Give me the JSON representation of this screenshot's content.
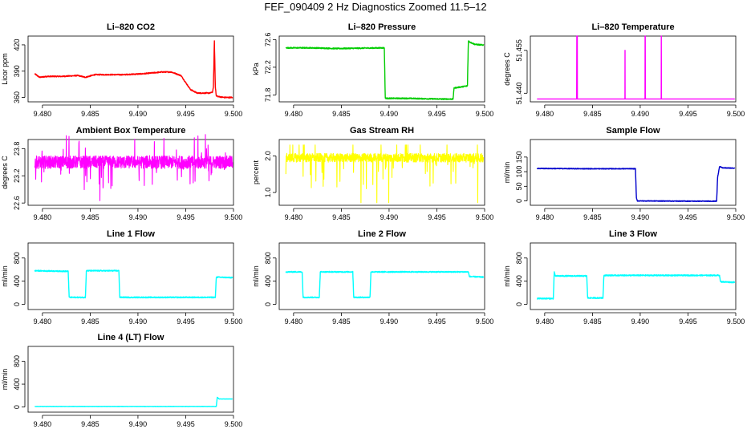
{
  "figure": {
    "title": "FEF_090409  2 Hz Diagnostics Zoomed 11.5–12"
  },
  "chart_data": [
    {
      "type": "line",
      "title": "Li–820 CO2",
      "ylabel": "Licor ppm",
      "color": "#ff0000",
      "xlim": [
        9.4785,
        9.5
      ],
      "ylim": [
        355,
        430
      ],
      "xticks": [
        "9.480",
        "9.485",
        "9.490",
        "9.495",
        "9.500"
      ],
      "yticks": [
        360,
        390,
        420
      ],
      "noise": 0.6,
      "series": [
        {
          "x": [
            9.4792,
            9.4797,
            9.4805,
            9.482,
            9.4837,
            9.4845,
            9.4855,
            9.487,
            9.4885,
            9.4905,
            9.4925,
            9.4935,
            9.4945,
            9.495,
            9.4955,
            9.4962,
            9.4975,
            9.4978,
            9.4979,
            9.498,
            9.4981,
            9.4982,
            9.4984,
            9.499,
            9.4999
          ],
          "y": [
            387,
            383,
            384,
            384,
            385,
            383,
            386,
            386,
            386,
            387,
            389,
            389,
            385,
            377,
            369,
            365,
            365,
            366,
            372,
            424,
            372,
            362,
            361,
            360,
            360
          ]
        }
      ]
    },
    {
      "type": "line",
      "title": "Li–820 Pressure",
      "ylabel": "kPa",
      "color": "#00cc00",
      "xlim": [
        9.4785,
        9.5
      ],
      "ylim": [
        71.7,
        72.65
      ],
      "xticks": [
        "9.480",
        "9.485",
        "9.490",
        "9.495",
        "9.500"
      ],
      "yticks": [
        "71.8",
        "72.2",
        "72.6"
      ],
      "noise": 0.008,
      "series": [
        {
          "x": [
            9.4792,
            9.4818,
            9.4845,
            9.4895,
            9.4896,
            9.4897,
            9.492,
            9.4955,
            9.4967,
            9.4968,
            9.4982,
            9.4983,
            9.4985,
            9.499,
            9.4999
          ],
          "y": [
            72.48,
            72.48,
            72.47,
            72.48,
            71.76,
            71.75,
            71.75,
            71.74,
            71.74,
            71.9,
            71.93,
            72.58,
            72.56,
            72.53,
            72.52
          ]
        }
      ]
    },
    {
      "type": "line",
      "title": "Li–820 Temperature",
      "ylabel": "degrees C",
      "color": "#ff00ff",
      "xlim": [
        9.4785,
        9.5
      ],
      "ylim": [
        51.437,
        51.46
      ],
      "xticks": [
        "9.480",
        "9.485",
        "9.490",
        "9.495",
        "9.500"
      ],
      "yticks": [
        "51.440",
        "51.455"
      ],
      "noise": 0,
      "series": [
        {
          "x": [
            9.4792,
            9.48335,
            9.48336,
            9.48337,
            9.48339,
            9.4834,
            9.48341,
            9.48342,
            9.48343,
            9.4884,
            9.48841,
            9.48842,
            9.4905,
            9.49051,
            9.49052,
            9.49053,
            9.49054,
            9.4922,
            9.49221,
            9.49222,
            9.4999
          ],
          "y": [
            51.438,
            51.438,
            51.46,
            51.438,
            51.46,
            51.438,
            51.46,
            51.438,
            51.438,
            51.438,
            51.455,
            51.438,
            51.438,
            51.46,
            51.438,
            51.46,
            51.438,
            51.438,
            51.46,
            51.438,
            51.438
          ]
        }
      ]
    },
    {
      "type": "line",
      "title": "Ambient Box Temperature",
      "ylabel": "degrees C",
      "color": "#ff00ff",
      "xlim": [
        9.4785,
        9.5
      ],
      "ylim": [
        22.55,
        24.0
      ],
      "xticks": [
        "9.480",
        "9.485",
        "9.490",
        "9.495",
        "9.500"
      ],
      "yticks": [
        "22.6",
        "23.2",
        "23.8"
      ],
      "noise": 0.14,
      "series": [
        {
          "x": [
            9.4792,
            9.4999
          ],
          "y": [
            23.5,
            23.5
          ]
        }
      ]
    },
    {
      "type": "line",
      "title": "Gas Stream RH",
      "ylabel": "percent",
      "color": "#ffff00",
      "xlim": [
        9.4785,
        9.5
      ],
      "ylim": [
        0.65,
        2.45
      ],
      "xticks": [
        "9.480",
        "9.485",
        "9.490",
        "9.495",
        "9.500"
      ],
      "yticks": [
        "1.0",
        "2.0"
      ],
      "noise": 0.12,
      "series": [
        {
          "x": [
            9.4792,
            9.4999
          ],
          "y": [
            1.95,
            1.95
          ]
        }
      ]
    },
    {
      "type": "line",
      "title": "Sample Flow",
      "ylabel": "ml/min",
      "color": "#0000cc",
      "xlim": [
        9.4785,
        9.5
      ],
      "ylim": [
        -15,
        210
      ],
      "xticks": [
        "9.480",
        "9.485",
        "9.490",
        "9.495",
        "9.500"
      ],
      "yticks": [
        0,
        50,
        100,
        150
      ],
      "noise": 1.2,
      "series": [
        {
          "x": [
            9.4792,
            9.484,
            9.4895,
            9.4896,
            9.4897,
            9.496,
            9.498,
            9.4981,
            9.4983,
            9.4986,
            9.4999
          ],
          "y": [
            111,
            110,
            110,
            10,
            0,
            -1,
            -1,
            80,
            118,
            113,
            112
          ]
        }
      ]
    },
    {
      "type": "line",
      "title": "Line 1 Flow",
      "ylabel": "ml/min",
      "color": "#00ffff",
      "xlim": [
        9.4785,
        9.5
      ],
      "ylim": [
        -90,
        1060
      ],
      "xticks": [
        "9.480",
        "9.485",
        "9.490",
        "9.495",
        "9.500"
      ],
      "yticks": [
        0,
        400,
        800
      ],
      "noise": 9,
      "series": [
        {
          "x": [
            9.4792,
            9.4827,
            9.4828,
            9.4845,
            9.4846,
            9.488,
            9.4881,
            9.4981,
            9.4982,
            9.4999
          ],
          "y": [
            580,
            570,
            120,
            120,
            580,
            580,
            120,
            120,
            470,
            460
          ]
        }
      ]
    },
    {
      "type": "line",
      "title": "Line 2 Flow",
      "ylabel": "ml/min",
      "color": "#00ffff",
      "xlim": [
        9.4785,
        9.5
      ],
      "ylim": [
        -90,
        1060
      ],
      "xticks": [
        "9.480",
        "9.485",
        "9.490",
        "9.495",
        "9.500"
      ],
      "yticks": [
        0,
        400,
        800
      ],
      "noise": 9,
      "series": [
        {
          "x": [
            9.4792,
            9.4809,
            9.481,
            9.4827,
            9.4828,
            9.4862,
            9.4863,
            9.488,
            9.4881,
            9.4983,
            9.4984,
            9.4999
          ],
          "y": [
            560,
            560,
            120,
            120,
            560,
            560,
            120,
            120,
            560,
            560,
            480,
            470
          ]
        }
      ]
    },
    {
      "type": "line",
      "title": "Line 3 Flow",
      "ylabel": "ml/min",
      "color": "#00ffff",
      "xlim": [
        9.4785,
        9.5
      ],
      "ylim": [
        -90,
        1060
      ],
      "xticks": [
        "9.480",
        "9.485",
        "9.490",
        "9.495",
        "9.500"
      ],
      "yticks": [
        0,
        400,
        800
      ],
      "noise": 10,
      "series": [
        {
          "x": [
            9.4792,
            9.4809,
            9.481,
            9.4811,
            9.4844,
            9.4845,
            9.4861,
            9.4862,
            9.4983,
            9.4984,
            9.4999
          ],
          "y": [
            100,
            100,
            560,
            490,
            490,
            110,
            110,
            500,
            500,
            390,
            380
          ]
        }
      ]
    },
    {
      "type": "line",
      "title": "Line 4 (LT) Flow",
      "ylabel": "ml/min",
      "color": "#00ffff",
      "xlim": [
        9.4785,
        9.5
      ],
      "ylim": [
        -90,
        1060
      ],
      "xticks": [
        "9.480",
        "9.485",
        "9.490",
        "9.495",
        "9.500"
      ],
      "yticks": [
        0,
        400,
        800
      ],
      "noise": 2,
      "series": [
        {
          "x": [
            9.4792,
            9.4982,
            9.4983,
            9.4985,
            9.4999
          ],
          "y": [
            10,
            10,
            170,
            140,
            140
          ]
        }
      ]
    }
  ]
}
